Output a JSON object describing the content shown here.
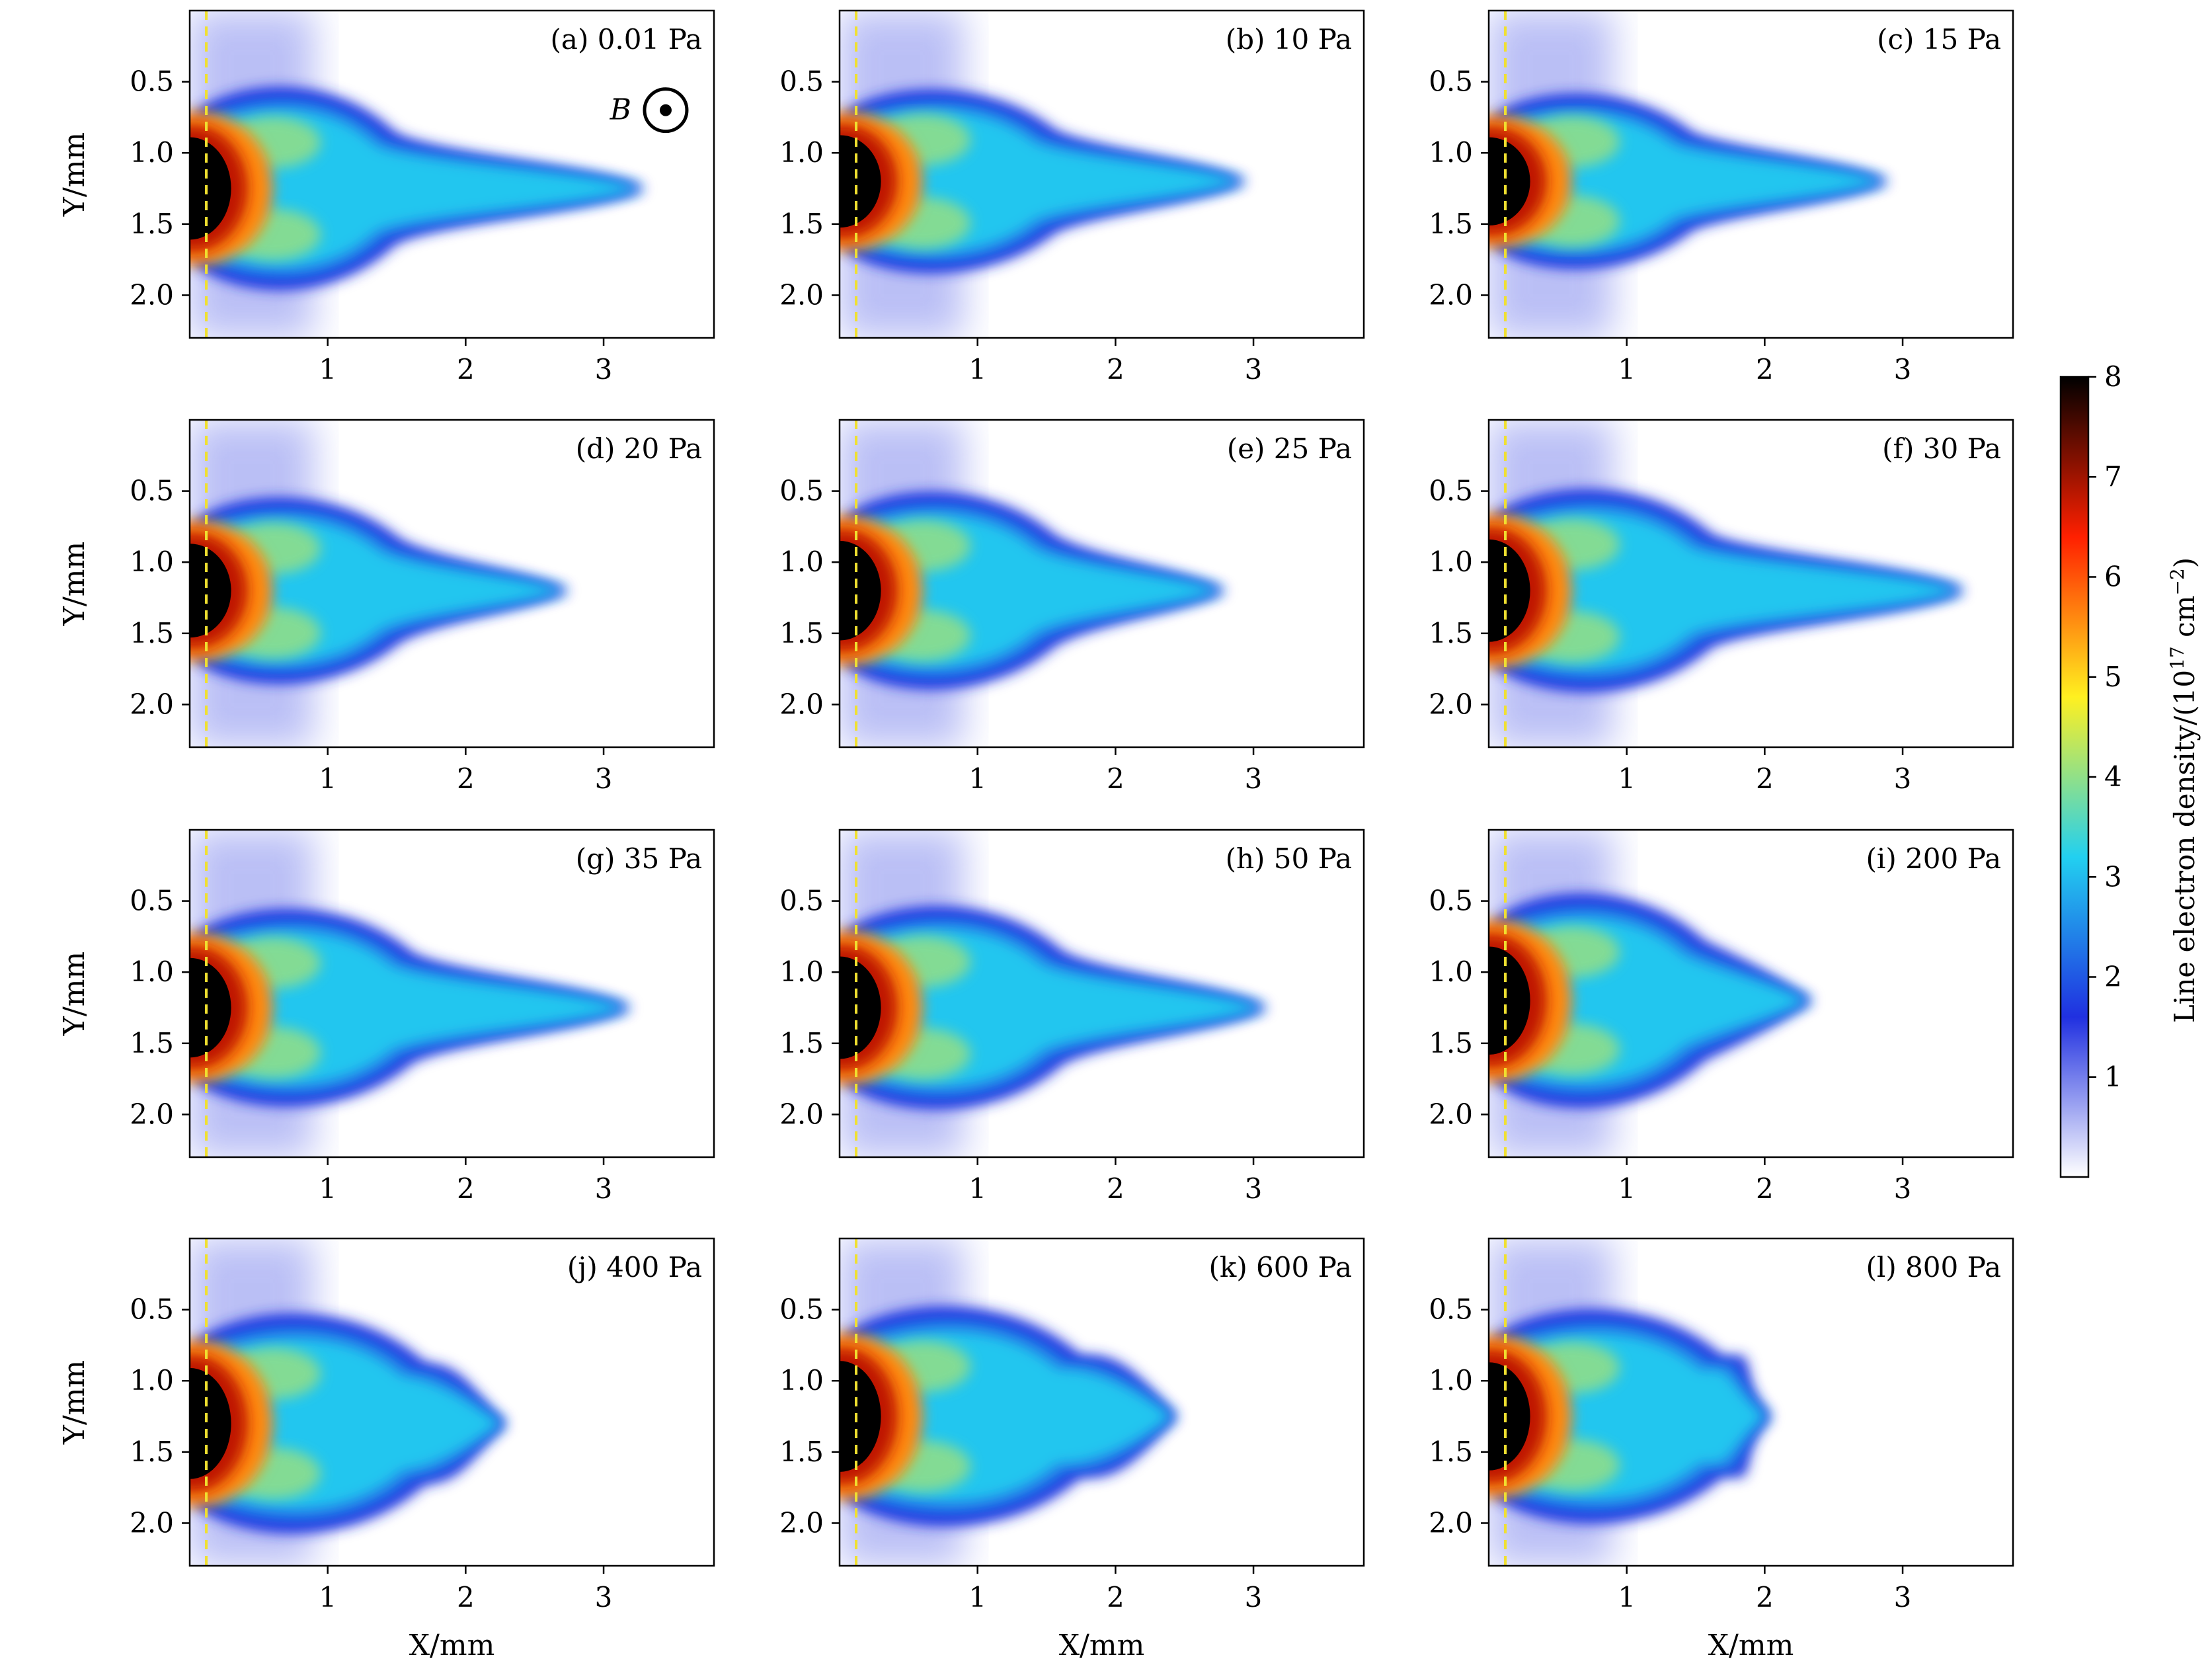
{
  "chart_data": {
    "type": "heatmap",
    "layout": "4 rows x 3 columns of small-multiple panels",
    "xlabel": "X/mm",
    "ylabel": "Y/mm",
    "xlim": [
      0,
      3.8
    ],
    "ylim": [
      2.3,
      0.0
    ],
    "x_ticks": [
      "1",
      "2",
      "3"
    ],
    "y_ticks": [
      "0.5",
      "1.0",
      "1.5",
      "2.0"
    ],
    "x_tick_values": [
      1,
      2,
      3
    ],
    "y_tick_values": [
      0.5,
      1.0,
      1.5,
      2.0
    ],
    "target_line_x": 0.12,
    "magnetic_field": {
      "label": "B",
      "symbol": "out-of-page (⊙)",
      "x": 3.45,
      "y": 0.7
    },
    "colorbar": {
      "label_prefix": "Line electron density/(10",
      "label_exp1": "17",
      "label_mid": " cm",
      "label_exp2": "−2",
      "label_suffix": ")",
      "range": [
        0,
        8
      ],
      "ticks": [
        "1",
        "2",
        "3",
        "4",
        "5",
        "6",
        "7",
        "8"
      ],
      "tick_values": [
        1,
        2,
        3,
        4,
        5,
        6,
        7,
        8
      ],
      "colormap": [
        "#ffffff",
        "#2030e0",
        "#22d0f0",
        "#fff020",
        "#ff2000",
        "#000000"
      ]
    },
    "panels": [
      {
        "label": "(a) 0.01 Pa",
        "pressure_pa": 0.01,
        "bulb_x": [
          0.35,
          1.35
        ],
        "bulb_half_height": 0.72,
        "center_y": 1.25,
        "tail_end_x": 3.3,
        "tail_width": 0.15,
        "core_density": 8
      },
      {
        "label": "(b) 10 Pa",
        "pressure_pa": 10,
        "bulb_x": [
          0.3,
          1.45
        ],
        "bulb_half_height": 0.65,
        "center_y": 1.2,
        "tail_end_x": 2.95,
        "tail_width": 0.14,
        "core_density": 8
      },
      {
        "label": "(c) 15 Pa",
        "pressure_pa": 15,
        "bulb_x": [
          0.3,
          1.35
        ],
        "bulb_half_height": 0.62,
        "center_y": 1.2,
        "tail_end_x": 2.9,
        "tail_width": 0.14,
        "core_density": 8
      },
      {
        "label": "(d) 20 Pa",
        "pressure_pa": 20,
        "bulb_x": [
          0.3,
          1.4
        ],
        "bulb_half_height": 0.66,
        "center_y": 1.2,
        "tail_end_x": 2.75,
        "tail_width": 0.13,
        "core_density": 8
      },
      {
        "label": "(e) 25 Pa",
        "pressure_pa": 25,
        "bulb_x": [
          0.3,
          1.45
        ],
        "bulb_half_height": 0.7,
        "center_y": 1.2,
        "tail_end_x": 2.8,
        "tail_width": 0.14,
        "core_density": 8
      },
      {
        "label": "(f) 30 Pa",
        "pressure_pa": 30,
        "bulb_x": [
          0.35,
          1.5
        ],
        "bulb_half_height": 0.72,
        "center_y": 1.2,
        "tail_end_x": 3.45,
        "tail_width": 0.16,
        "core_density": 8
      },
      {
        "label": "(g) 35 Pa",
        "pressure_pa": 35,
        "bulb_x": [
          0.35,
          1.5
        ],
        "bulb_half_height": 0.7,
        "center_y": 1.25,
        "tail_end_x": 3.2,
        "tail_width": 0.15,
        "core_density": 8
      },
      {
        "label": "(h) 50 Pa",
        "pressure_pa": 50,
        "bulb_x": [
          0.35,
          1.5
        ],
        "bulb_half_height": 0.72,
        "center_y": 1.25,
        "tail_end_x": 3.1,
        "tail_width": 0.15,
        "core_density": 8
      },
      {
        "label": "(i) 200 Pa",
        "pressure_pa": 200,
        "bulb_x": [
          0.3,
          1.45
        ],
        "bulb_half_height": 0.76,
        "center_y": 1.2,
        "tail_end_x": 2.35,
        "tail_width": 0.18,
        "core_density": 8
      },
      {
        "label": "(j) 400 Pa",
        "pressure_pa": 400,
        "bulb_x": [
          0.35,
          1.6
        ],
        "bulb_half_height": 0.78,
        "center_y": 1.3,
        "tail_end_x": 2.3,
        "tail_width": 0.25,
        "core_density": 8
      },
      {
        "label": "(k) 600 Pa",
        "pressure_pa": 600,
        "bulb_x": [
          0.35,
          1.65
        ],
        "bulb_half_height": 0.78,
        "center_y": 1.25,
        "tail_end_x": 2.45,
        "tail_width": 0.28,
        "core_density": 8
      },
      {
        "label": "(l) 800 Pa",
        "pressure_pa": 800,
        "bulb_x": [
          0.35,
          1.6
        ],
        "bulb_half_height": 0.76,
        "center_y": 1.25,
        "tail_end_x": 2.05,
        "tail_width": 0.3,
        "core_density": 8
      }
    ]
  }
}
